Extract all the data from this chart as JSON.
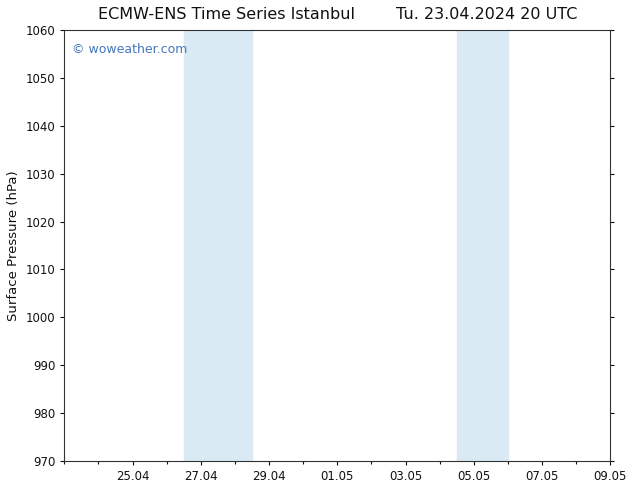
{
  "title_left": "ECMW-ENS Time Series Istanbul",
  "title_right": "Tu. 23.04.2024 20 UTC",
  "ylabel": "Surface Pressure (hPa)",
  "ylim": [
    970,
    1060
  ],
  "yticks": [
    970,
    980,
    990,
    1000,
    1010,
    1020,
    1030,
    1040,
    1050,
    1060
  ],
  "xlim": [
    0,
    16
  ],
  "xtick_labels": [
    "25.04",
    "27.04",
    "29.04",
    "01.05",
    "03.05",
    "05.05",
    "07.05",
    "09.05"
  ],
  "xtick_positions": [
    2.0,
    4.0,
    6.0,
    8.0,
    10.0,
    12.0,
    14.0,
    16.0
  ],
  "shaded_bands": [
    {
      "x_start": 3.5,
      "x_end": 5.5
    },
    {
      "x_start": 11.5,
      "x_end": 13.0
    }
  ],
  "band_color": "#daeaf5",
  "background_color": "#ffffff",
  "plot_bg_color": "#ffffff",
  "watermark_text": "© woweather.com",
  "watermark_color": "#4477bb",
  "title_color": "#111111",
  "axis_label_color": "#111111",
  "tick_color": "#111111",
  "spine_color": "#333333",
  "title_fontsize": 11.5,
  "tick_fontsize": 8.5,
  "ylabel_fontsize": 9.5,
  "watermark_fontsize": 9
}
